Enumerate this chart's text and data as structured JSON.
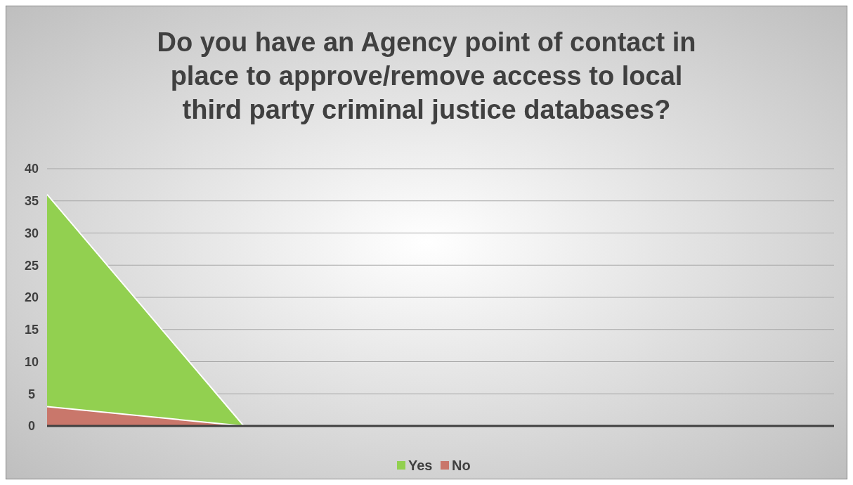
{
  "chart_data": {
    "type": "area",
    "title": "Do you have an Agency point of contact in place to approve/remove access to local third party criminal justice databases?",
    "categories": [
      null,
      null,
      null,
      null,
      null
    ],
    "series": [
      {
        "name": "Yes",
        "color": "#92d050",
        "values": [
          36,
          0,
          0,
          0,
          0
        ]
      },
      {
        "name": "No",
        "color": "#c9776b",
        "values": [
          3,
          0,
          0,
          0,
          0
        ]
      }
    ],
    "ylim": [
      0,
      40
    ],
    "yticks": [
      0,
      5,
      10,
      15,
      20,
      25,
      30,
      35,
      40
    ],
    "grid": "y",
    "legend": "bottom"
  }
}
